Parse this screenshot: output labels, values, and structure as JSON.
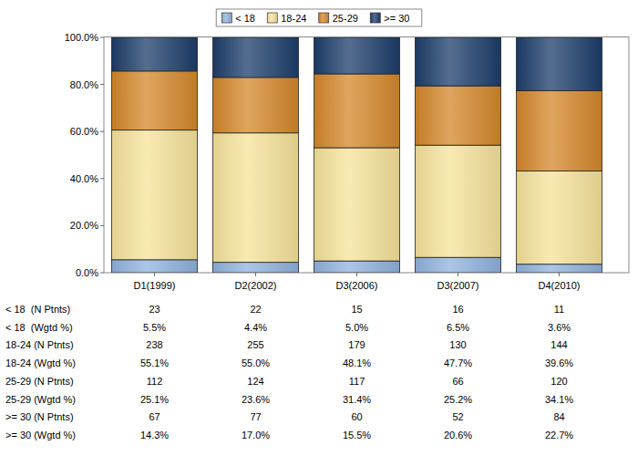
{
  "chart_data": {
    "type": "bar",
    "stacked": true,
    "legend": "top",
    "grid": false,
    "data_labels": false,
    "categories": [
      "D1(1999)",
      "D2(2002)",
      "D3(2006)",
      "D3(2007)",
      "D4(2010)"
    ],
    "ylim": [
      0,
      100
    ],
    "yticks": [
      {
        "value": 0,
        "label": "0.0%"
      },
      {
        "value": 20,
        "label": "20.0%"
      },
      {
        "value": 40,
        "label": "40.0%"
      },
      {
        "value": 60,
        "label": "60.0%"
      },
      {
        "value": 80,
        "label": "80.0%"
      },
      {
        "value": 100,
        "label": "100.0%"
      }
    ],
    "series": [
      {
        "name": "< 18",
        "color": "#8fb3de",
        "values": [
          5.5,
          4.4,
          5.0,
          6.5,
          3.6
        ],
        "value_labels": [
          "5.5%",
          "4.4%",
          "5.0%",
          "6.5%",
          "3.6%"
        ],
        "n_patients": [
          23,
          22,
          15,
          16,
          11
        ],
        "count_row": "< 18  (N Ptnts)",
        "percent_row": "< 18  (Wgtd %)"
      },
      {
        "name": "18-24",
        "color": "#f7e39a",
        "values": [
          55.1,
          55.0,
          48.1,
          47.7,
          39.6
        ],
        "value_labels": [
          "55.1%",
          "55.0%",
          "48.1%",
          "47.7%",
          "39.6%"
        ],
        "n_patients": [
          238,
          255,
          179,
          130,
          144
        ],
        "count_row": "18-24 (N Ptnts)",
        "percent_row": "18-24 (Wgtd %)"
      },
      {
        "name": "25-29",
        "color": "#d4872a",
        "values": [
          25.1,
          23.6,
          31.4,
          25.2,
          34.1
        ],
        "value_labels": [
          "25.1%",
          "23.6%",
          "31.4%",
          "25.2%",
          "34.1%"
        ],
        "n_patients": [
          112,
          124,
          117,
          66,
          120
        ],
        "count_row": "25-29 (N Ptnts)",
        "percent_row": "25-29 (Wgtd %)"
      },
      {
        "name": ">= 30",
        "color": "#1c3d6b",
        "values": [
          14.3,
          17.0,
          15.5,
          20.6,
          22.7
        ],
        "value_labels": [
          "14.3%",
          "17.0%",
          "15.5%",
          "20.6%",
          "22.7%"
        ],
        "n_patients": [
          67,
          77,
          60,
          52,
          84
        ],
        "count_row": ">= 30 (N Ptnts)",
        "percent_row": ">= 30 (Wgtd %)"
      }
    ]
  }
}
